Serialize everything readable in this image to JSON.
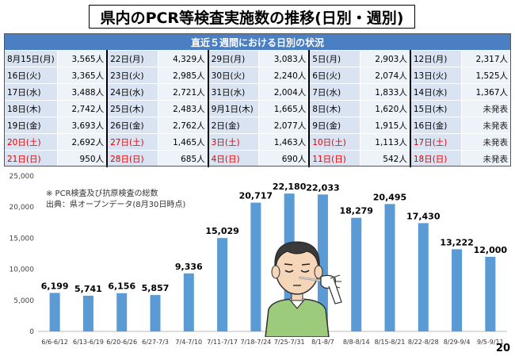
{
  "title": "県内のPCR等検査実施数の推移(日別・週別)",
  "table": {
    "header": "直近５週間における日別の状況",
    "rows": [
      {
        "kind": "weekday",
        "cells": [
          [
            "8月15日(月)",
            "3,565人"
          ],
          [
            "22日(月)",
            "4,329人"
          ],
          [
            "29日(月)",
            "3,083人"
          ],
          [
            "5日(月)",
            "2,903人"
          ],
          [
            "12日(月)",
            "2,317人"
          ]
        ]
      },
      {
        "kind": "weekday",
        "cells": [
          [
            "16日(火)",
            "3,365人"
          ],
          [
            "23日(火)",
            "2,985人"
          ],
          [
            "30日(火)",
            "2,240人"
          ],
          [
            "6日(火)",
            "2,074人"
          ],
          [
            "13日(火)",
            "1,525人"
          ]
        ]
      },
      {
        "kind": "weekday",
        "cells": [
          [
            "17日(水)",
            "3,488人"
          ],
          [
            "24日(水)",
            "2,721人"
          ],
          [
            "31日(水)",
            "2,004人"
          ],
          [
            "7日(水)",
            "1,833人"
          ],
          [
            "14日(水)",
            "1,367人"
          ]
        ]
      },
      {
        "kind": "weekday",
        "cells": [
          [
            "18日(木)",
            "2,742人"
          ],
          [
            "25日(木)",
            "2,483人"
          ],
          [
            "9月1日(木)",
            "1,665人"
          ],
          [
            "8日(木)",
            "1,620人"
          ],
          [
            "15日(木)",
            "未発表"
          ]
        ]
      },
      {
        "kind": "weekday",
        "cells": [
          [
            "19日(金)",
            "3,693人"
          ],
          [
            "26日(金)",
            "2,762人"
          ],
          [
            "2日(金)",
            "2,077人"
          ],
          [
            "9日(金)",
            "1,915人"
          ],
          [
            "16日(金)",
            "未発表"
          ]
        ]
      },
      {
        "kind": "sat",
        "cells": [
          [
            "20日(土)",
            "2,692人"
          ],
          [
            "27日(土)",
            "1,465人"
          ],
          [
            "3日(土)",
            "1,463人"
          ],
          [
            "10日(土)",
            "1,113人"
          ],
          [
            "17日(土)",
            "未発表"
          ]
        ]
      },
      {
        "kind": "sun",
        "cells": [
          [
            "21日(日)",
            "950人"
          ],
          [
            "28日(日)",
            "685人"
          ],
          [
            "4日(日)",
            "690人"
          ],
          [
            "11日(日)",
            "542人"
          ],
          [
            "18日(日)",
            "未発表"
          ]
        ]
      }
    ]
  },
  "notes": {
    "line1": "※ PCR検査及び抗原検査の総数",
    "line2": "出典：県オープンデータ(8月30日時点)"
  },
  "page_number": "20",
  "colors": {
    "bar": "#5b9bd5",
    "header": "#4b7fc4"
  },
  "chart_data": {
    "type": "bar",
    "categories": [
      "6/6-6/12",
      "6/13-6/19",
      "6/20-6/26",
      "6/27-7/3",
      "7/4-7/10",
      "7/11-7/17",
      "7/18-7/24",
      "7/25-7/31",
      "8/1-8/7",
      "8/8-8/14",
      "8/15-8/21",
      "8/22-8/28",
      "8/29-9/4",
      "9/5-9/11"
    ],
    "values": [
      6199,
      5741,
      6156,
      5857,
      9336,
      15029,
      20717,
      22180,
      22033,
      18279,
      20495,
      17430,
      13222,
      12000
    ],
    "value_labels": [
      "6,199",
      "5,741",
      "6,156",
      "5,857",
      "9,336",
      "15,029",
      "20,717",
      "22,180",
      "22,033",
      "18,279",
      "20,495",
      "17,430",
      "13,222",
      "12,000"
    ],
    "yticks": [
      "0",
      "5,000",
      "10,000",
      "15,000",
      "20,000",
      "25,000"
    ],
    "ylim": [
      0,
      25000
    ],
    "grid": false,
    "legend": "none"
  },
  "illustration": {
    "icon": "person-nasal-swab-icon"
  }
}
